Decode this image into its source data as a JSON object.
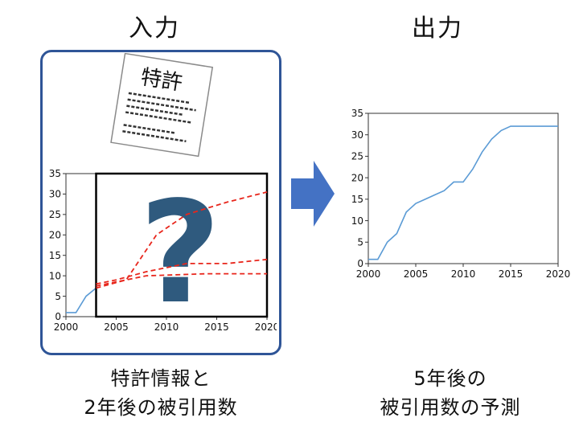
{
  "input": {
    "heading": "入力",
    "patent_label": "特許",
    "caption_line1": "特許情報と",
    "caption_line2": "2年後の被引用数",
    "question_mark": "?"
  },
  "output": {
    "heading": "出力",
    "caption_line1": "5年後の",
    "caption_line2": "被引用数の予測"
  },
  "colors": {
    "panel_border": "#2f5597",
    "arrow": "#4472c4",
    "series": "#5b9bd5",
    "dashed": "#e8261c",
    "question": "#2f5a7e"
  },
  "chart_data": [
    {
      "type": "line",
      "x": [
        2000,
        2001,
        2002,
        2003
      ],
      "series": [
        {
          "values": [
            1,
            1,
            5,
            7
          ]
        }
      ],
      "dashed_guesses": [
        {
          "x": [
            2003,
            2006,
            2009,
            2012,
            2016,
            2020
          ],
          "values": [
            7,
            9,
            20,
            25,
            28,
            30.5
          ]
        },
        {
          "x": [
            2003,
            2005,
            2008,
            2012,
            2016,
            2020
          ],
          "values": [
            8,
            9,
            11,
            13,
            13,
            14
          ]
        },
        {
          "x": [
            2003,
            2008,
            2014,
            2020
          ],
          "values": [
            7.5,
            10,
            10.5,
            10.5
          ]
        }
      ],
      "xticks": [
        2000,
        2005,
        2010,
        2015,
        2020
      ],
      "yticks": [
        0,
        5,
        10,
        15,
        20,
        25,
        30,
        35
      ],
      "xlim": [
        2000,
        2020
      ],
      "ylim": [
        0,
        35
      ],
      "unknown_box_from": 2003,
      "grid": false
    },
    {
      "type": "line",
      "x": [
        2000,
        2001,
        2002,
        2003,
        2004,
        2005,
        2006,
        2007,
        2008,
        2009,
        2010,
        2011,
        2012,
        2013,
        2014,
        2015,
        2016,
        2017,
        2018,
        2019,
        2020
      ],
      "series": [
        {
          "values": [
            1,
            1,
            5,
            7,
            12,
            14,
            15,
            16,
            17,
            19,
            19,
            22,
            26,
            29,
            31,
            32,
            32,
            32,
            32,
            32,
            32
          ]
        }
      ],
      "xticks": [
        2000,
        2005,
        2010,
        2015,
        2020
      ],
      "yticks": [
        0,
        5,
        10,
        15,
        20,
        25,
        30,
        35
      ],
      "xlim": [
        2000,
        2020
      ],
      "ylim": [
        0,
        35
      ],
      "grid": false
    }
  ]
}
